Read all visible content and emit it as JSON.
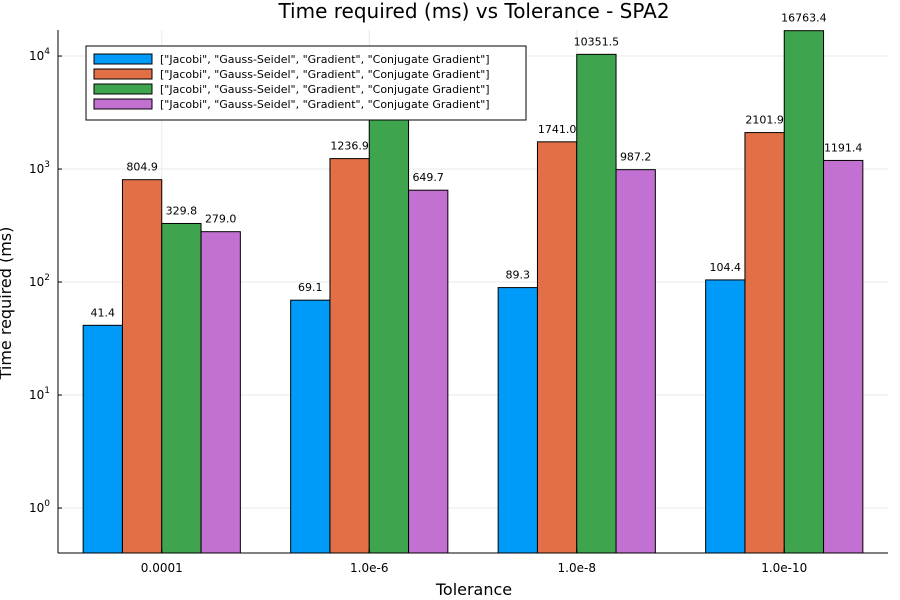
{
  "chart_data": {
    "type": "bar",
    "title": "Time required (ms) vs Tolerance - SPA2",
    "xlabel": "Tolerance",
    "ylabel": "Time required (ms)",
    "y_scale": "log10",
    "ylim": [
      0.4,
      17000
    ],
    "yticks": [
      1,
      10,
      100,
      1000,
      10000
    ],
    "categories": [
      "0.0001",
      "1.0e-6",
      "1.0e-8",
      "1.0e-10"
    ],
    "legend_position": "top-left",
    "grid": true,
    "series": [
      {
        "name": "[\"Jacobi\", \"Gauss-Seidel\", \"Gradient\", \"Conjugate Gradient\"]",
        "color": "#009af9",
        "values": [
          41.4,
          69.1,
          89.3,
          104.4
        ],
        "labels": [
          "41.4",
          "69.1",
          "89.3",
          "104.4"
        ]
      },
      {
        "name": "[\"Jacobi\", \"Gauss-Seidel\", \"Gradient\", \"Conjugate Gradient\"]",
        "color": "#e26f46",
        "values": [
          804.9,
          1236.9,
          1741.0,
          2101.9
        ],
        "labels": [
          "804.9",
          "1236.9",
          "1741.0",
          "2101.9"
        ]
      },
      {
        "name": "[\"Jacobi\", \"Gauss-Seidel\", \"Gradient\", \"Conjugate Gradient\"]",
        "color": "#3ea44e",
        "values": [
          329.8,
          4367.2,
          10351.5,
          16763.4
        ],
        "labels": [
          "329.8",
          "4367.2",
          "10351.5",
          "16763.4"
        ]
      },
      {
        "name": "[\"Jacobi\", \"Gauss-Seidel\", \"Gradient\", \"Conjugate Gradient\"]",
        "color": "#c271d2",
        "values": [
          279.0,
          649.7,
          987.2,
          1191.4
        ],
        "labels": [
          "279.0",
          "649.7",
          "987.2",
          "1191.4"
        ]
      }
    ]
  }
}
